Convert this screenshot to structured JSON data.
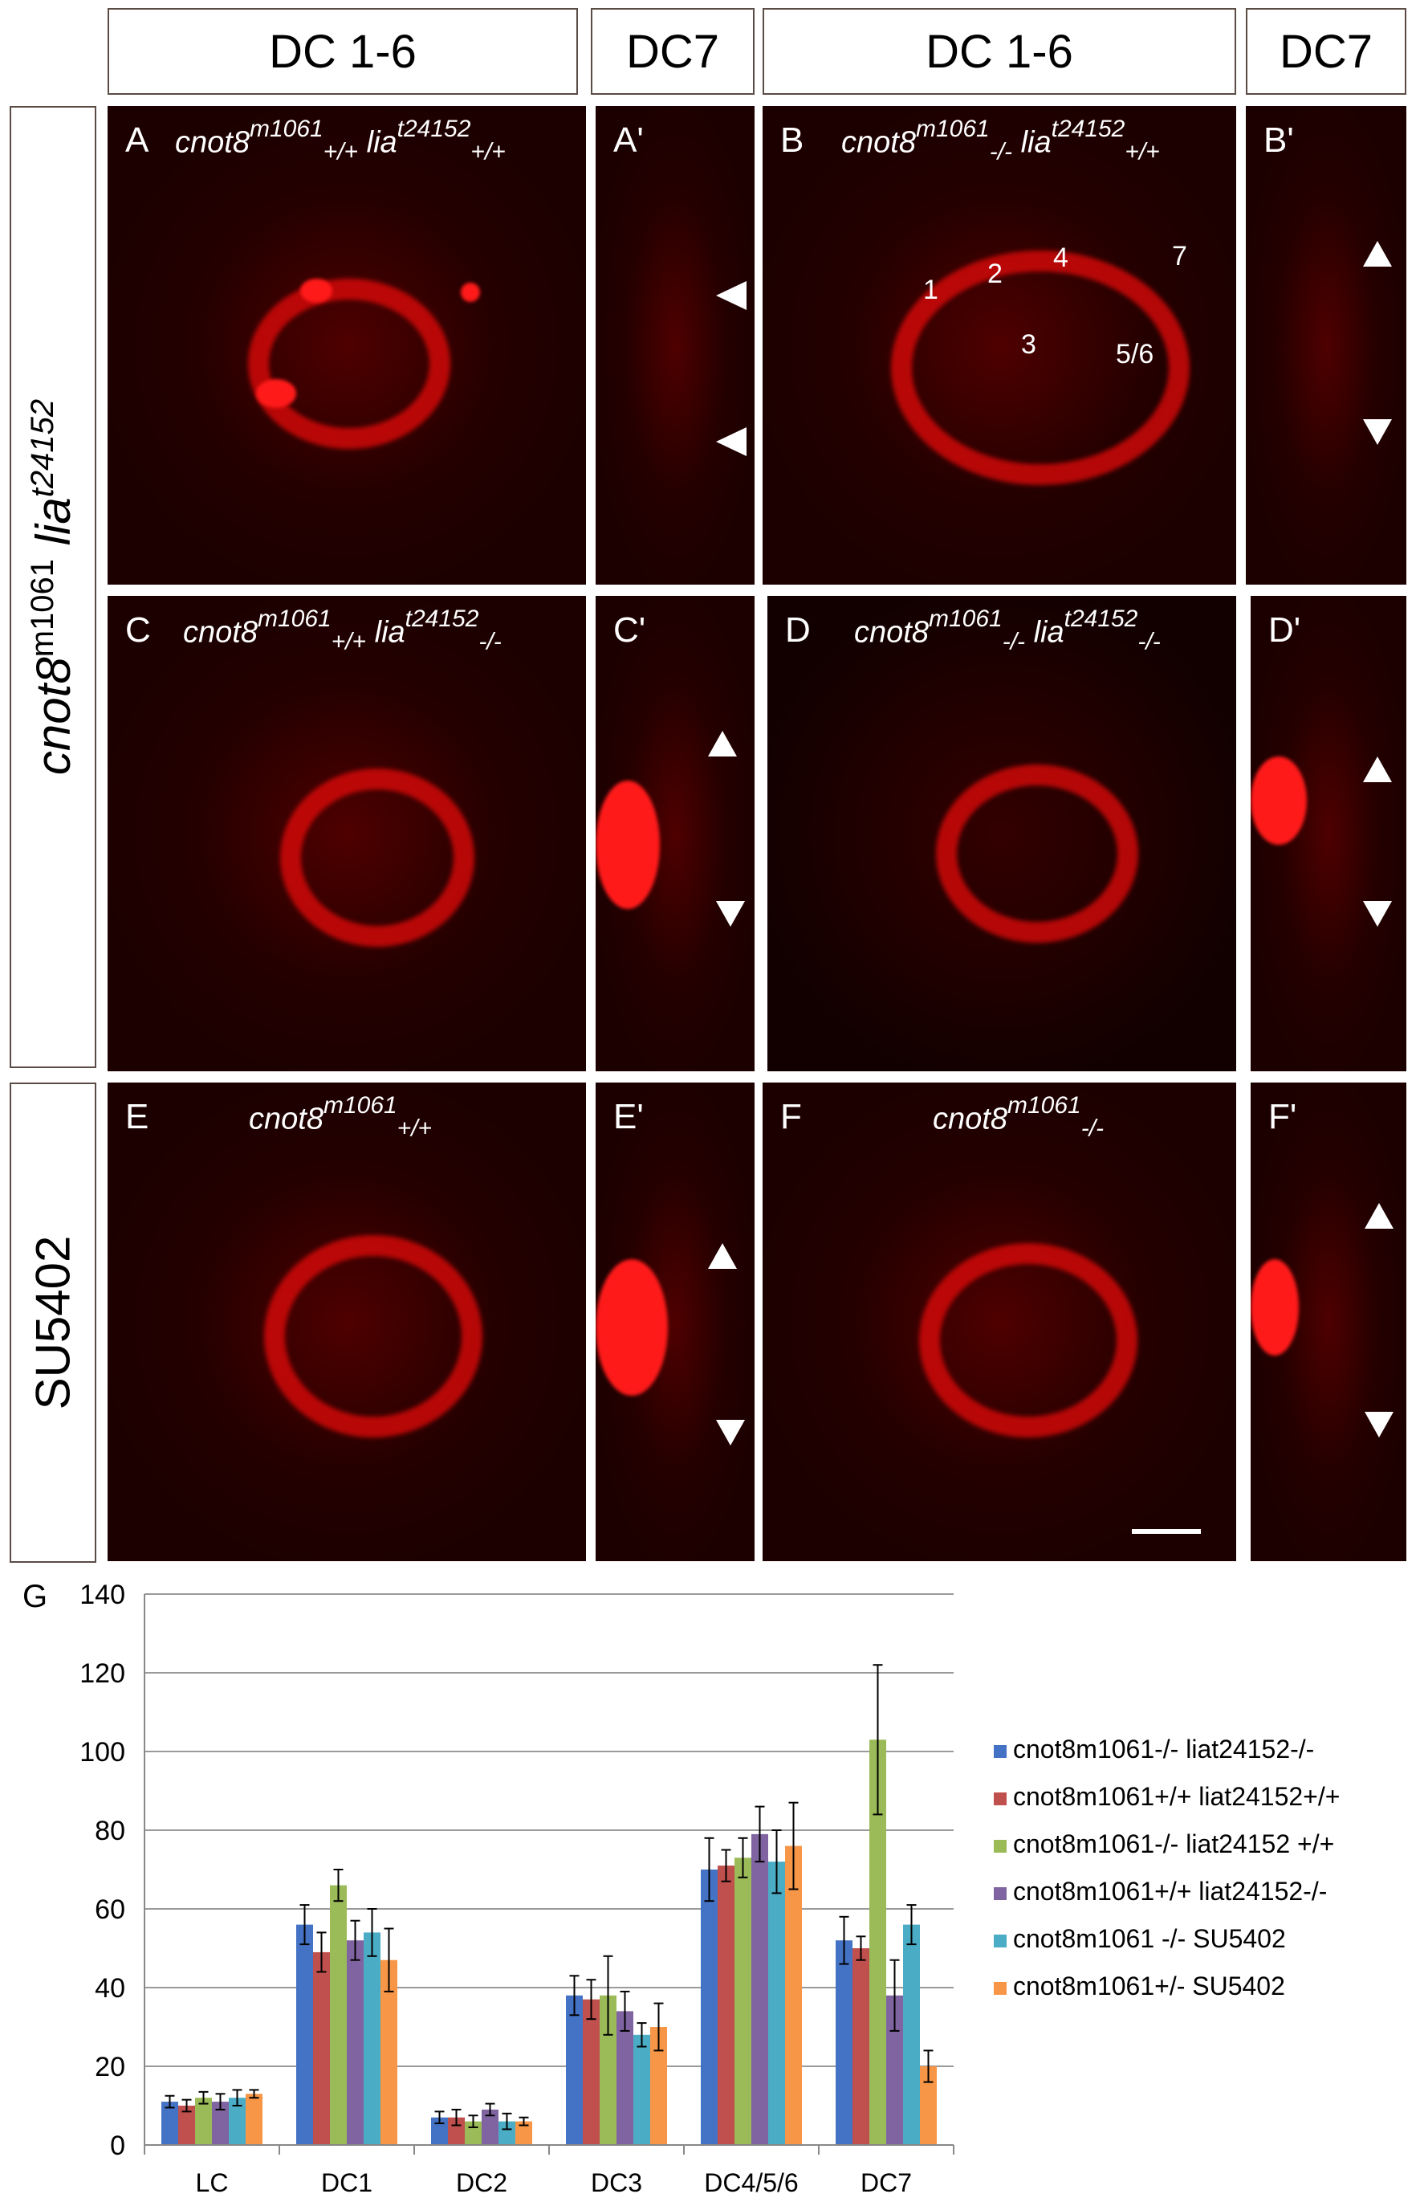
{
  "headers": {
    "dc16_a": "DC 1-6",
    "dc7_a": "DC7",
    "dc16_b": "DC 1-6",
    "dc7_b": "DC7"
  },
  "side_labels": {
    "top_gene": "cnot8",
    "top_sup": "m1061",
    "top_gene2": "lia",
    "top_sup2": "t24152",
    "bottom": "SU5402"
  },
  "panels": {
    "A": {
      "label": "A",
      "g1": "cnot8",
      "s1": "m1061",
      "b1": "+/+",
      "g2": " lia",
      "s2": "t24152",
      "b2": "+/+"
    },
    "A2": {
      "label": "A'"
    },
    "B": {
      "label": "B",
      "g1": "cnot8",
      "s1": "m1061",
      "b1": "-/-",
      "g2": " lia",
      "s2": "t24152",
      "b2": "+/+"
    },
    "B2": {
      "label": "B'"
    },
    "C": {
      "label": "C",
      "g1": "cnot8",
      "s1": "m1061",
      "b1": "+/+",
      "g2": " lia",
      "s2": "t24152",
      "b2": "-/-"
    },
    "C2": {
      "label": "C'"
    },
    "D": {
      "label": "D",
      "g1": "cnot8",
      "s1": "m1061",
      "b1": "-/-",
      "g2": " lia",
      "s2": "t24152",
      "b2": "-/-"
    },
    "D2": {
      "label": "D'"
    },
    "E": {
      "label": "E",
      "g1": "cnot8",
      "s1": "m1061",
      "b1": "+/+"
    },
    "E2": {
      "label": "E'"
    },
    "F": {
      "label": "F",
      "g1": "cnot8",
      "s1": "m1061",
      "b1": "-/-"
    },
    "F2": {
      "label": "F'"
    }
  },
  "cluster_numbers": [
    "1",
    "2",
    "3",
    "4",
    "5/6",
    "7"
  ],
  "chart_data": {
    "type": "bar",
    "panel_label": "G",
    "categories": [
      "LC",
      "DC1",
      "DC2",
      "DC3",
      "DC4/5/6",
      "DC7"
    ],
    "ylim": [
      0,
      140
    ],
    "yticks": [
      0,
      20,
      40,
      60,
      80,
      100,
      120,
      140
    ],
    "grid": true,
    "legend_position": "right",
    "series": [
      {
        "name": "cnot8m1061-/- liat24152-/-",
        "color": "#4472c4",
        "values": [
          11,
          56,
          7,
          38,
          70,
          52
        ],
        "errors": [
          1.5,
          5,
          1.5,
          5,
          8,
          6
        ]
      },
      {
        "name": "cnot8m1061+/+ liat24152+/+",
        "color": "#c0504d",
        "values": [
          10,
          49,
          7,
          37,
          71,
          50
        ],
        "errors": [
          1.5,
          5,
          2,
          5,
          4,
          3
        ]
      },
      {
        "name": "cnot8m1061-/- liat24152 +/+",
        "color": "#9bbb59",
        "values": [
          12,
          66,
          6,
          38,
          73,
          103
        ],
        "errors": [
          1.5,
          4,
          1.5,
          10,
          5,
          19
        ]
      },
      {
        "name": "cnot8m1061+/+ liat24152-/-",
        "color": "#8064a2",
        "values": [
          11,
          52,
          9,
          34,
          79,
          38
        ],
        "errors": [
          2,
          5,
          1.5,
          5,
          7,
          9
        ]
      },
      {
        "name": "cnot8m1061 -/- SU5402",
        "color": "#4bacc6",
        "values": [
          12,
          54,
          6,
          28,
          72,
          56
        ],
        "errors": [
          2,
          6,
          2,
          3,
          8,
          5
        ]
      },
      {
        "name": "cnot8m1061+/- SU5402",
        "color": "#f79646",
        "values": [
          13,
          47,
          6,
          30,
          76,
          20
        ],
        "errors": [
          1,
          8,
          1,
          6,
          11,
          4
        ]
      }
    ]
  }
}
